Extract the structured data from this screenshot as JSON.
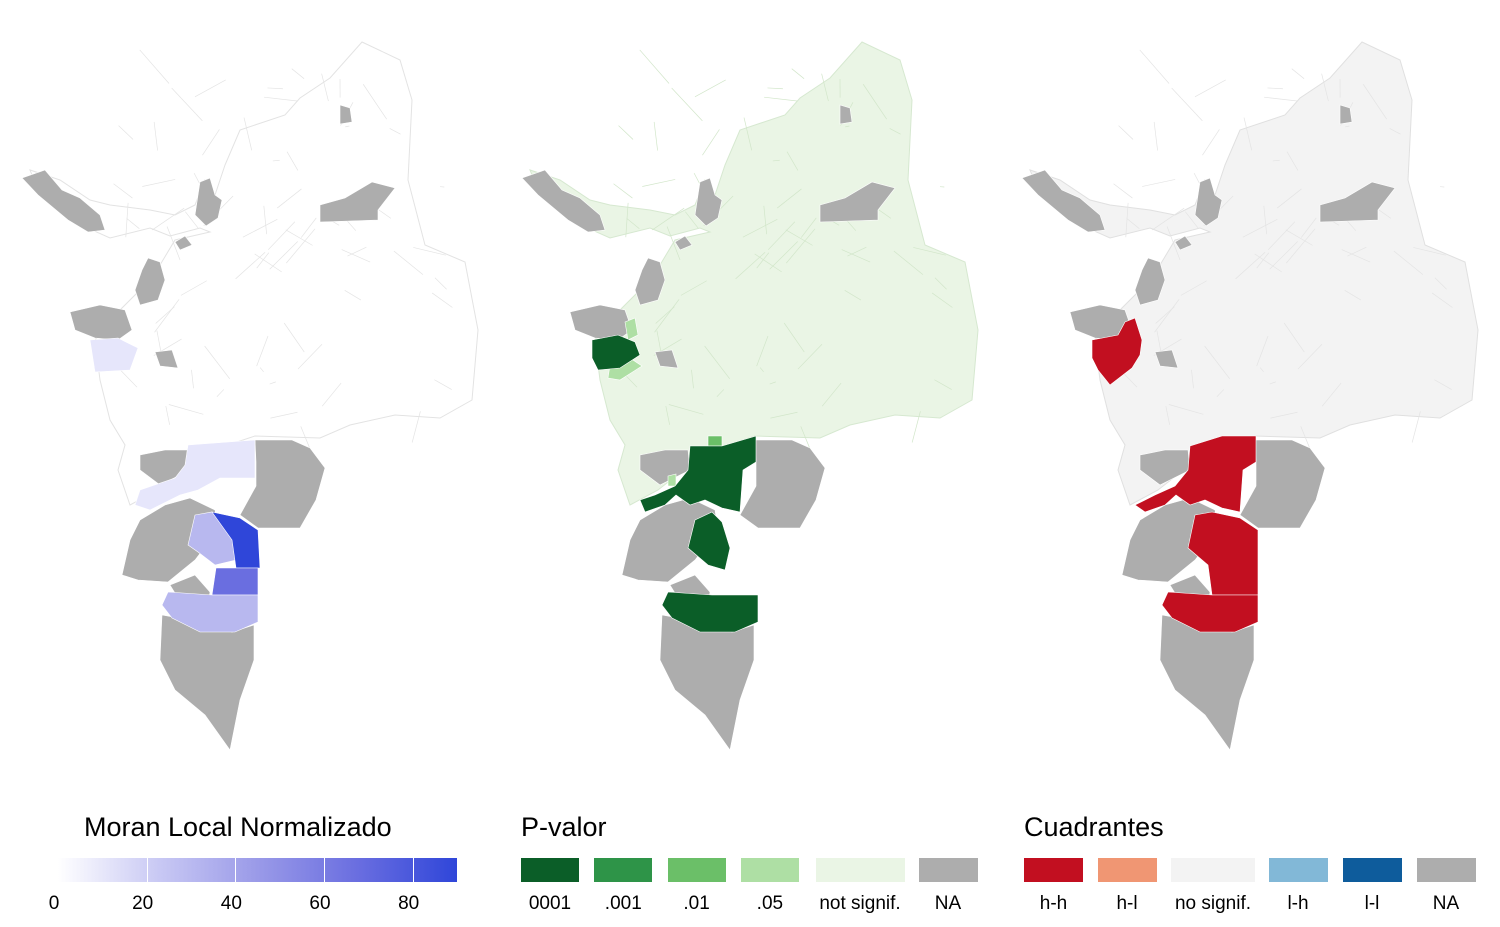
{
  "colors": {
    "na": "#adadad",
    "moran_base": "#ffffff",
    "moran_light": "#e6e6fb",
    "moran_mid": "#b8b8ef",
    "moran_strong": "#6a6ee0",
    "moran_max": "#2f46d9",
    "pval_0001": "#0b5e28",
    "pval_001": "#2e9448",
    "pval_01": "#6bbf68",
    "pval_05": "#aedfa4",
    "pval_notsig": "#eaf5e5",
    "quad_hh": "#c20f20",
    "quad_hl": "#f09673",
    "quad_nosig": "#f3f3f3",
    "quad_lh": "#82b8d7",
    "quad_ll": "#0e5c9c"
  },
  "maps": [
    {
      "id": "moran",
      "legend_title": "Moran Local Normalizado",
      "legend_type": "continuous",
      "ticks": [
        {
          "value": 0,
          "label": "0"
        },
        {
          "value": 20,
          "label": "20"
        },
        {
          "value": 40,
          "label": "40"
        },
        {
          "value": 60,
          "label": "60"
        },
        {
          "value": 80,
          "label": "80"
        }
      ],
      "range": [
        0,
        90
      ]
    },
    {
      "id": "pvalor",
      "legend_title": "P-valor",
      "legend_type": "categorical",
      "categories": [
        "0001",
        ".001",
        ".01",
        ".05",
        "not signif.",
        "NA"
      ]
    },
    {
      "id": "cuadrantes",
      "legend_title": "Cuadrantes",
      "legend_type": "categorical",
      "categories": [
        "h-h",
        "h-l",
        "no signif.",
        "l-h",
        "l-l",
        "NA"
      ]
    }
  ]
}
